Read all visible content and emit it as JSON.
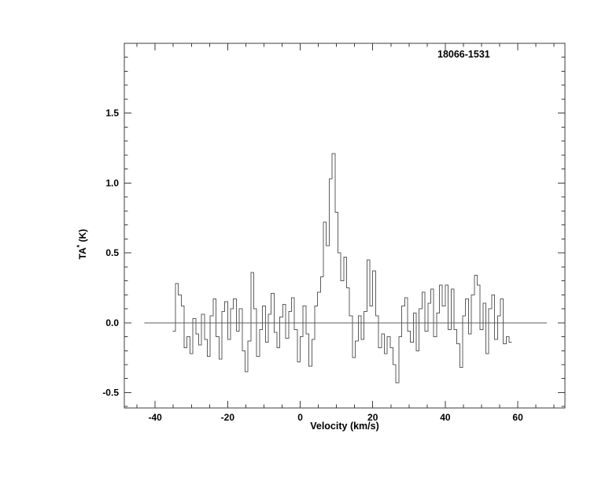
{
  "figure": {
    "source_label": "18066-1531",
    "x_axis_title": "Velocity (km/s)",
    "y_axis_title_main": "TA",
    "y_axis_title_sup": "*",
    "y_axis_title_unit": " (K)"
  },
  "colors": {
    "background": "#ffffff",
    "frame": "#3c3c3c",
    "tick": "#3c3c3c",
    "data_line": "#5c5c5c",
    "baseline": "#5c5c5c",
    "text": "#000000"
  },
  "chart_data": {
    "type": "line",
    "style": "histogram-step",
    "title": "18066-1531",
    "xlabel": "Velocity (km/s)",
    "ylabel": "TA* (K)",
    "xlim": [
      -48.5,
      73.0
    ],
    "ylim": [
      -0.61,
      2.0
    ],
    "grid": false,
    "legend": "none",
    "x_major_ticks": [
      -40,
      -20,
      0,
      20,
      40,
      60
    ],
    "x_tick_labels": [
      "-40",
      "-20",
      "0",
      "20",
      "40",
      "60"
    ],
    "x_minor_step": 5,
    "y_major_ticks": [
      -0.5,
      0.0,
      0.5,
      1.0,
      1.5
    ],
    "y_tick_labels": [
      "-0.5",
      "0.0",
      "0.5",
      "1.0",
      "1.5"
    ],
    "y_minor_step": 0.1,
    "baseline_y": 0.0,
    "baseline_x_range": [
      -43,
      68
    ],
    "peak": {
      "velocity": 9.2,
      "ta_k": 1.21
    },
    "x_start": -34.8,
    "x_step": 0.8,
    "values": [
      -0.06,
      0.28,
      0.2,
      0.12,
      -0.18,
      -0.1,
      -0.22,
      0.03,
      -0.08,
      -0.16,
      0.06,
      -0.12,
      -0.24,
      0.05,
      0.17,
      -0.1,
      -0.26,
      0.08,
      0.15,
      -0.12,
      0.1,
      0.17,
      -0.06,
      0.1,
      -0.2,
      -0.35,
      -0.13,
      0.36,
      0.1,
      -0.24,
      -0.05,
      0.12,
      -0.14,
      0.06,
      0.21,
      -0.07,
      -0.18,
      0.04,
      0.13,
      -0.11,
      0.08,
      0.18,
      -0.05,
      -0.28,
      -0.1,
      0.12,
      -0.08,
      -0.31,
      -0.12,
      0.12,
      0.22,
      0.33,
      0.72,
      0.55,
      1.03,
      1.21,
      0.79,
      0.5,
      0.3,
      0.47,
      0.25,
      0.05,
      -0.25,
      -0.13,
      0.05,
      -0.12,
      0.08,
      0.45,
      0.12,
      0.37,
      0.05,
      -0.18,
      -0.08,
      -0.22,
      -0.1,
      -0.18,
      -0.3,
      -0.43,
      -0.1,
      0.12,
      0.18,
      -0.06,
      -0.14,
      0.07,
      -0.2,
      0.1,
      0.22,
      -0.06,
      0.14,
      0.24,
      -0.1,
      0.07,
      0.27,
      0.12,
      0.27,
      -0.05,
      0.24,
      -0.05,
      -0.15,
      -0.32,
      0.05,
      0.17,
      -0.08,
      0.2,
      0.34,
      0.27,
      -0.05,
      0.14,
      -0.22,
      0.1,
      0.2,
      -0.12,
      0.05,
      0.17,
      -0.15,
      -0.1,
      -0.14
    ]
  }
}
